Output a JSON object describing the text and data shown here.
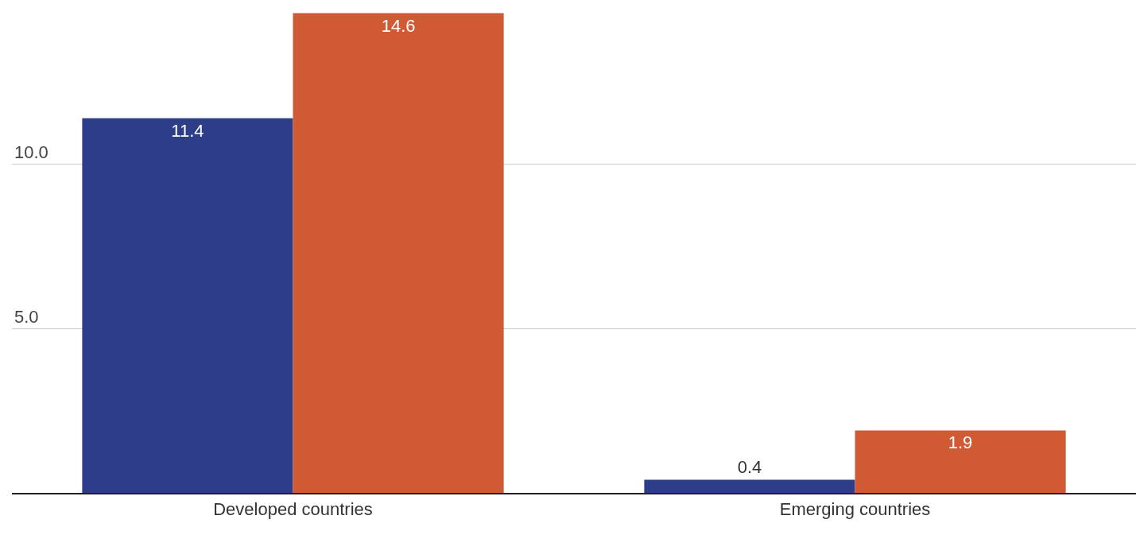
{
  "chart_data": {
    "type": "bar",
    "categories": [
      "Developed countries",
      "Emerging countries"
    ],
    "series": [
      {
        "color": "#2e3d8a",
        "values": [
          11.4,
          0.4
        ]
      },
      {
        "color": "#d05a33",
        "values": [
          14.6,
          1.9
        ]
      }
    ],
    "ylim": [
      0,
      15
    ],
    "yticks": [
      {
        "value": 0,
        "label": null
      },
      {
        "value": 5,
        "label": "5.0"
      },
      {
        "value": 10,
        "label": "10.0"
      }
    ],
    "grid": "y",
    "legend": false,
    "data_labels": true
  }
}
